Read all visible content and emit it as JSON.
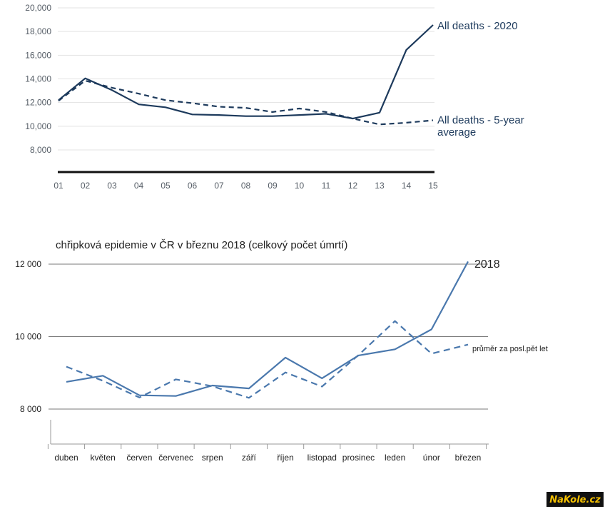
{
  "chart_data": [
    {
      "type": "line",
      "title": "",
      "xlabel": "",
      "ylabel": "",
      "x": [
        "01",
        "02",
        "03",
        "04",
        "05",
        "06",
        "07",
        "08",
        "09",
        "10",
        "11",
        "12",
        "13",
        "14",
        "15"
      ],
      "ylim": [
        6000,
        20000
      ],
      "y_ticks": [
        "20,000",
        "18,000",
        "16,000",
        "14,000",
        "12,000",
        "10,000",
        "8,000"
      ],
      "y_tick_values": [
        20000,
        18000,
        16000,
        14000,
        12000,
        10000,
        8000
      ],
      "grid": true,
      "series": [
        {
          "name": "All deaths - 2020",
          "label_lines": [
            "All deaths - 2020"
          ],
          "style": "solid",
          "color": "#1d3a5c",
          "values": [
            12200,
            14050,
            13050,
            11850,
            11600,
            11000,
            10950,
            10850,
            10850,
            10950,
            11050,
            10650,
            11150,
            16450,
            18550
          ]
        },
        {
          "name": "All deaths - 5-year average",
          "label_lines": [
            "All deaths - 5-year",
            "average"
          ],
          "style": "dashed",
          "color": "#1d3a5c",
          "values": [
            12150,
            13850,
            13250,
            12750,
            12200,
            11950,
            11650,
            11550,
            11200,
            11500,
            11200,
            10650,
            10150,
            10300,
            10500
          ]
        }
      ]
    },
    {
      "type": "line",
      "title": "chřipková epidemie v ČR v březnu 2018     (celkový počet úmrtí)",
      "xlabel": "",
      "ylabel": "",
      "categories": [
        "duben",
        "květen",
        "červen",
        "červenec",
        "srpen",
        "září",
        "říjen",
        "listopad",
        "prosinec",
        "leden",
        "únor",
        "březen"
      ],
      "ylim": [
        7000,
        12500
      ],
      "y_ticks": [
        "12 000",
        "10 000",
        "8 000"
      ],
      "y_tick_values": [
        12000,
        10000,
        8000
      ],
      "grid": true,
      "series": [
        {
          "name": "2018",
          "style": "solid",
          "color": "#4a78ad",
          "values": [
            8750,
            8920,
            8380,
            8360,
            8650,
            8570,
            9420,
            8850,
            9480,
            9650,
            10200,
            12070
          ]
        },
        {
          "name": "průměr za posl.pět let",
          "style": "dashed",
          "color": "#4a78ad",
          "values": [
            9170,
            8780,
            8320,
            8820,
            8630,
            8310,
            9010,
            8620,
            9490,
            10430,
            9530,
            9780
          ]
        }
      ]
    }
  ],
  "watermark": {
    "text": "NaKole.cz",
    "bg_color": "#111111",
    "text_color": "#f4c000"
  }
}
